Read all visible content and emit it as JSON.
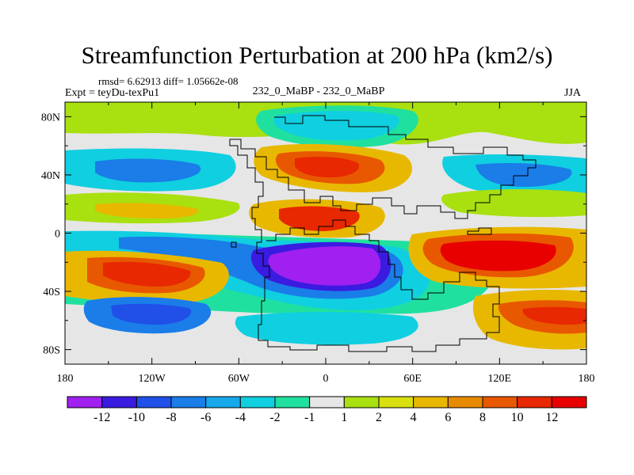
{
  "title": "Streamfunction Perturbation at 200 hPa (km2/s)",
  "stats": "rmsd= 6.62913 diff= 1.05662e-08",
  "experiment": "Expt = teyDu-texPu1",
  "center_label": "232_0_MaBP - 232_0_MaBP",
  "season": "JJA",
  "map": {
    "lon_range": [
      -180,
      180
    ],
    "lat_range": [
      -90,
      90
    ],
    "lon_ticks": [
      "180",
      "120W",
      "60W",
      "0",
      "60E",
      "120E",
      "180"
    ],
    "lat_ticks": [
      "80N",
      "40N",
      "0",
      "40S",
      "80S"
    ]
  },
  "colorbar": {
    "labels": [
      "-12",
      "-10",
      "-8",
      "-6",
      "-4",
      "-2",
      "-1",
      "1",
      "2",
      "4",
      "6",
      "8",
      "10",
      "12"
    ],
    "colors": [
      "#a020f0",
      "#3a1be0",
      "#2050e8",
      "#1a7de8",
      "#16a8e8",
      "#10cfe0",
      "#20e0a0",
      "#e6e6e6",
      "#a8e010",
      "#d8e010",
      "#e8b800",
      "#e88a00",
      "#e85800",
      "#e82800",
      "#e80000"
    ]
  }
}
